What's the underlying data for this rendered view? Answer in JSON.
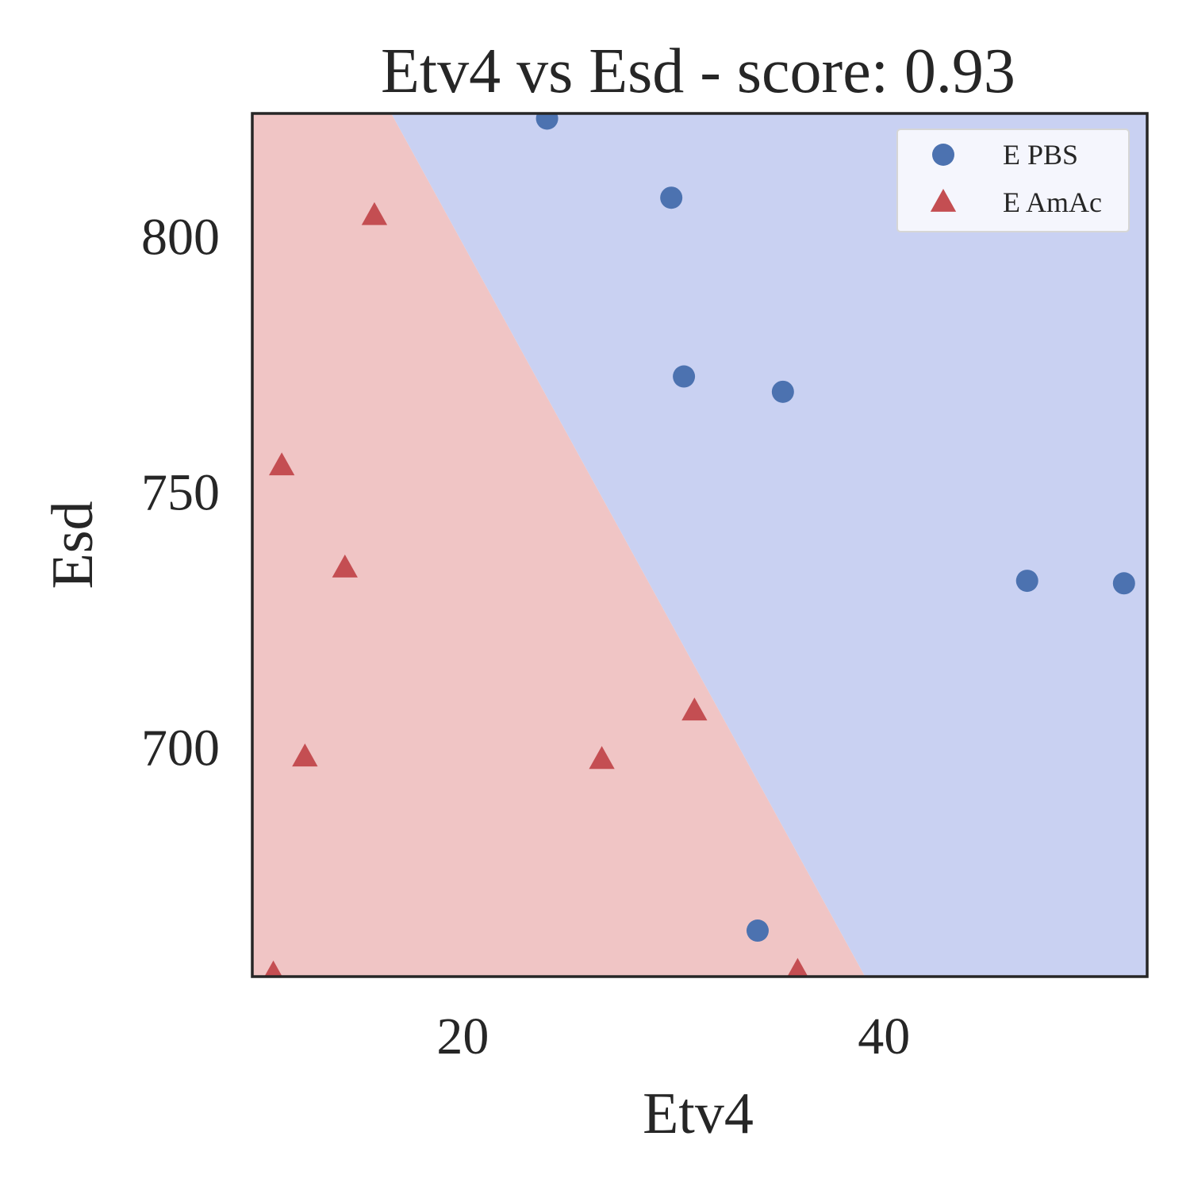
{
  "chart_data": {
    "type": "scatter",
    "title": "Etv4 vs Esd - score: 0.93",
    "xlabel": "Etv4",
    "ylabel": "Esd",
    "xlim": [
      10.0,
      52.5
    ],
    "ylim": [
      655.0,
      824.0
    ],
    "xticks": [
      {
        "value": 20,
        "label": "20"
      },
      {
        "value": 40,
        "label": "40"
      }
    ],
    "yticks": [
      {
        "value": 700,
        "label": "700"
      },
      {
        "value": 750,
        "label": "750"
      },
      {
        "value": 800,
        "label": "800"
      }
    ],
    "grid": false,
    "legend_position": "top-right",
    "decision_regions": {
      "boundary": [
        {
          "x": 16.6,
          "y": 824.0
        },
        {
          "x": 39.1,
          "y": 655.0
        }
      ],
      "left_region_class": "E AmAc",
      "right_region_class": "E PBS"
    },
    "series": [
      {
        "name": "E PBS",
        "marker": "circle",
        "color": "#4c72b0",
        "region_color": "#c9d1f2",
        "points": [
          {
            "x": 24.0,
            "y": 823.0
          },
          {
            "x": 29.9,
            "y": 807.5
          },
          {
            "x": 30.5,
            "y": 772.5
          },
          {
            "x": 35.2,
            "y": 769.5
          },
          {
            "x": 34.0,
            "y": 664.0
          },
          {
            "x": 46.8,
            "y": 732.5
          },
          {
            "x": 51.4,
            "y": 732.0
          }
        ]
      },
      {
        "name": "E AmAc",
        "marker": "triangle",
        "color": "#c44e52",
        "region_color": "#f0c5c5",
        "points": [
          {
            "x": 15.8,
            "y": 804.0
          },
          {
            "x": 11.4,
            "y": 755.0
          },
          {
            "x": 14.4,
            "y": 735.0
          },
          {
            "x": 12.5,
            "y": 698.0
          },
          {
            "x": 26.6,
            "y": 697.5
          },
          {
            "x": 31.0,
            "y": 707.0
          },
          {
            "x": 35.9,
            "y": 656.0
          },
          {
            "x": 11.0,
            "y": 655.5
          }
        ]
      }
    ]
  }
}
